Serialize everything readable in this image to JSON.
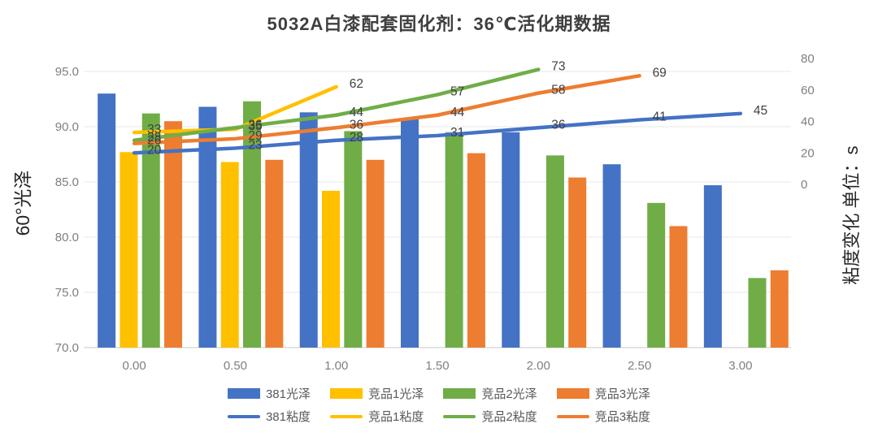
{
  "title": "5032A白漆配套固化剂：36℃活化期数据",
  "chart_data": {
    "type": "combo-bar-line",
    "title": "5032A白漆配套固化剂：36℃活化期数据",
    "x_labels": [
      "0.00",
      "0.50",
      "1.00",
      "1.50",
      "2.00",
      "2.50",
      "3.00"
    ],
    "left_axis": {
      "label": "60°光泽",
      "min": 70,
      "max": 95,
      "tick_labels": [
        "95.0",
        "90.0",
        "85.0",
        "80.0",
        "75.0",
        "70.0"
      ],
      "grid": true
    },
    "right_axis": {
      "label": "粘度变化 单位：s",
      "tick_labels": [
        "80",
        "60",
        "40",
        "20",
        "0"
      ]
    },
    "bar_series": [
      {
        "name": "381光泽",
        "color": "#4472C4",
        "values": [
          93.0,
          91.8,
          91.3,
          90.7,
          89.5,
          86.6,
          84.7
        ]
      },
      {
        "name": "竞品1光泽",
        "color": "#FFC000",
        "values": [
          87.7,
          86.8,
          84.2,
          null,
          null,
          null,
          null
        ]
      },
      {
        "name": "竞品2光泽",
        "color": "#70AD47",
        "values": [
          91.2,
          92.3,
          89.6,
          89.5,
          87.4,
          83.1,
          76.3
        ]
      },
      {
        "name": "竞品3光泽",
        "color": "#ED7D31",
        "values": [
          90.5,
          87.0,
          87.0,
          87.6,
          85.4,
          81.0,
          77.0
        ]
      }
    ],
    "line_series": [
      {
        "name": "381粘度",
        "color": "#4472C4",
        "values": [
          20,
          23,
          28,
          31,
          36,
          41,
          45
        ]
      },
      {
        "name": "竞品1粘度",
        "color": "#FFC000",
        "values": [
          33,
          35,
          62,
          null,
          null,
          null,
          null
        ]
      },
      {
        "name": "竞品2粘度",
        "color": "#70AD47",
        "values": [
          28,
          36,
          44,
          57,
          73,
          null,
          null
        ]
      },
      {
        "name": "竞品3粘度",
        "color": "#ED7D31",
        "values": [
          26,
          29,
          36,
          44,
          58,
          69,
          null
        ]
      }
    ],
    "legend_position": "bottom",
    "label_color": "#404040",
    "tick_color": "#7F7F7F",
    "grid_color": "#E7E7E7",
    "axis_line_color": "#C9C9C9"
  }
}
